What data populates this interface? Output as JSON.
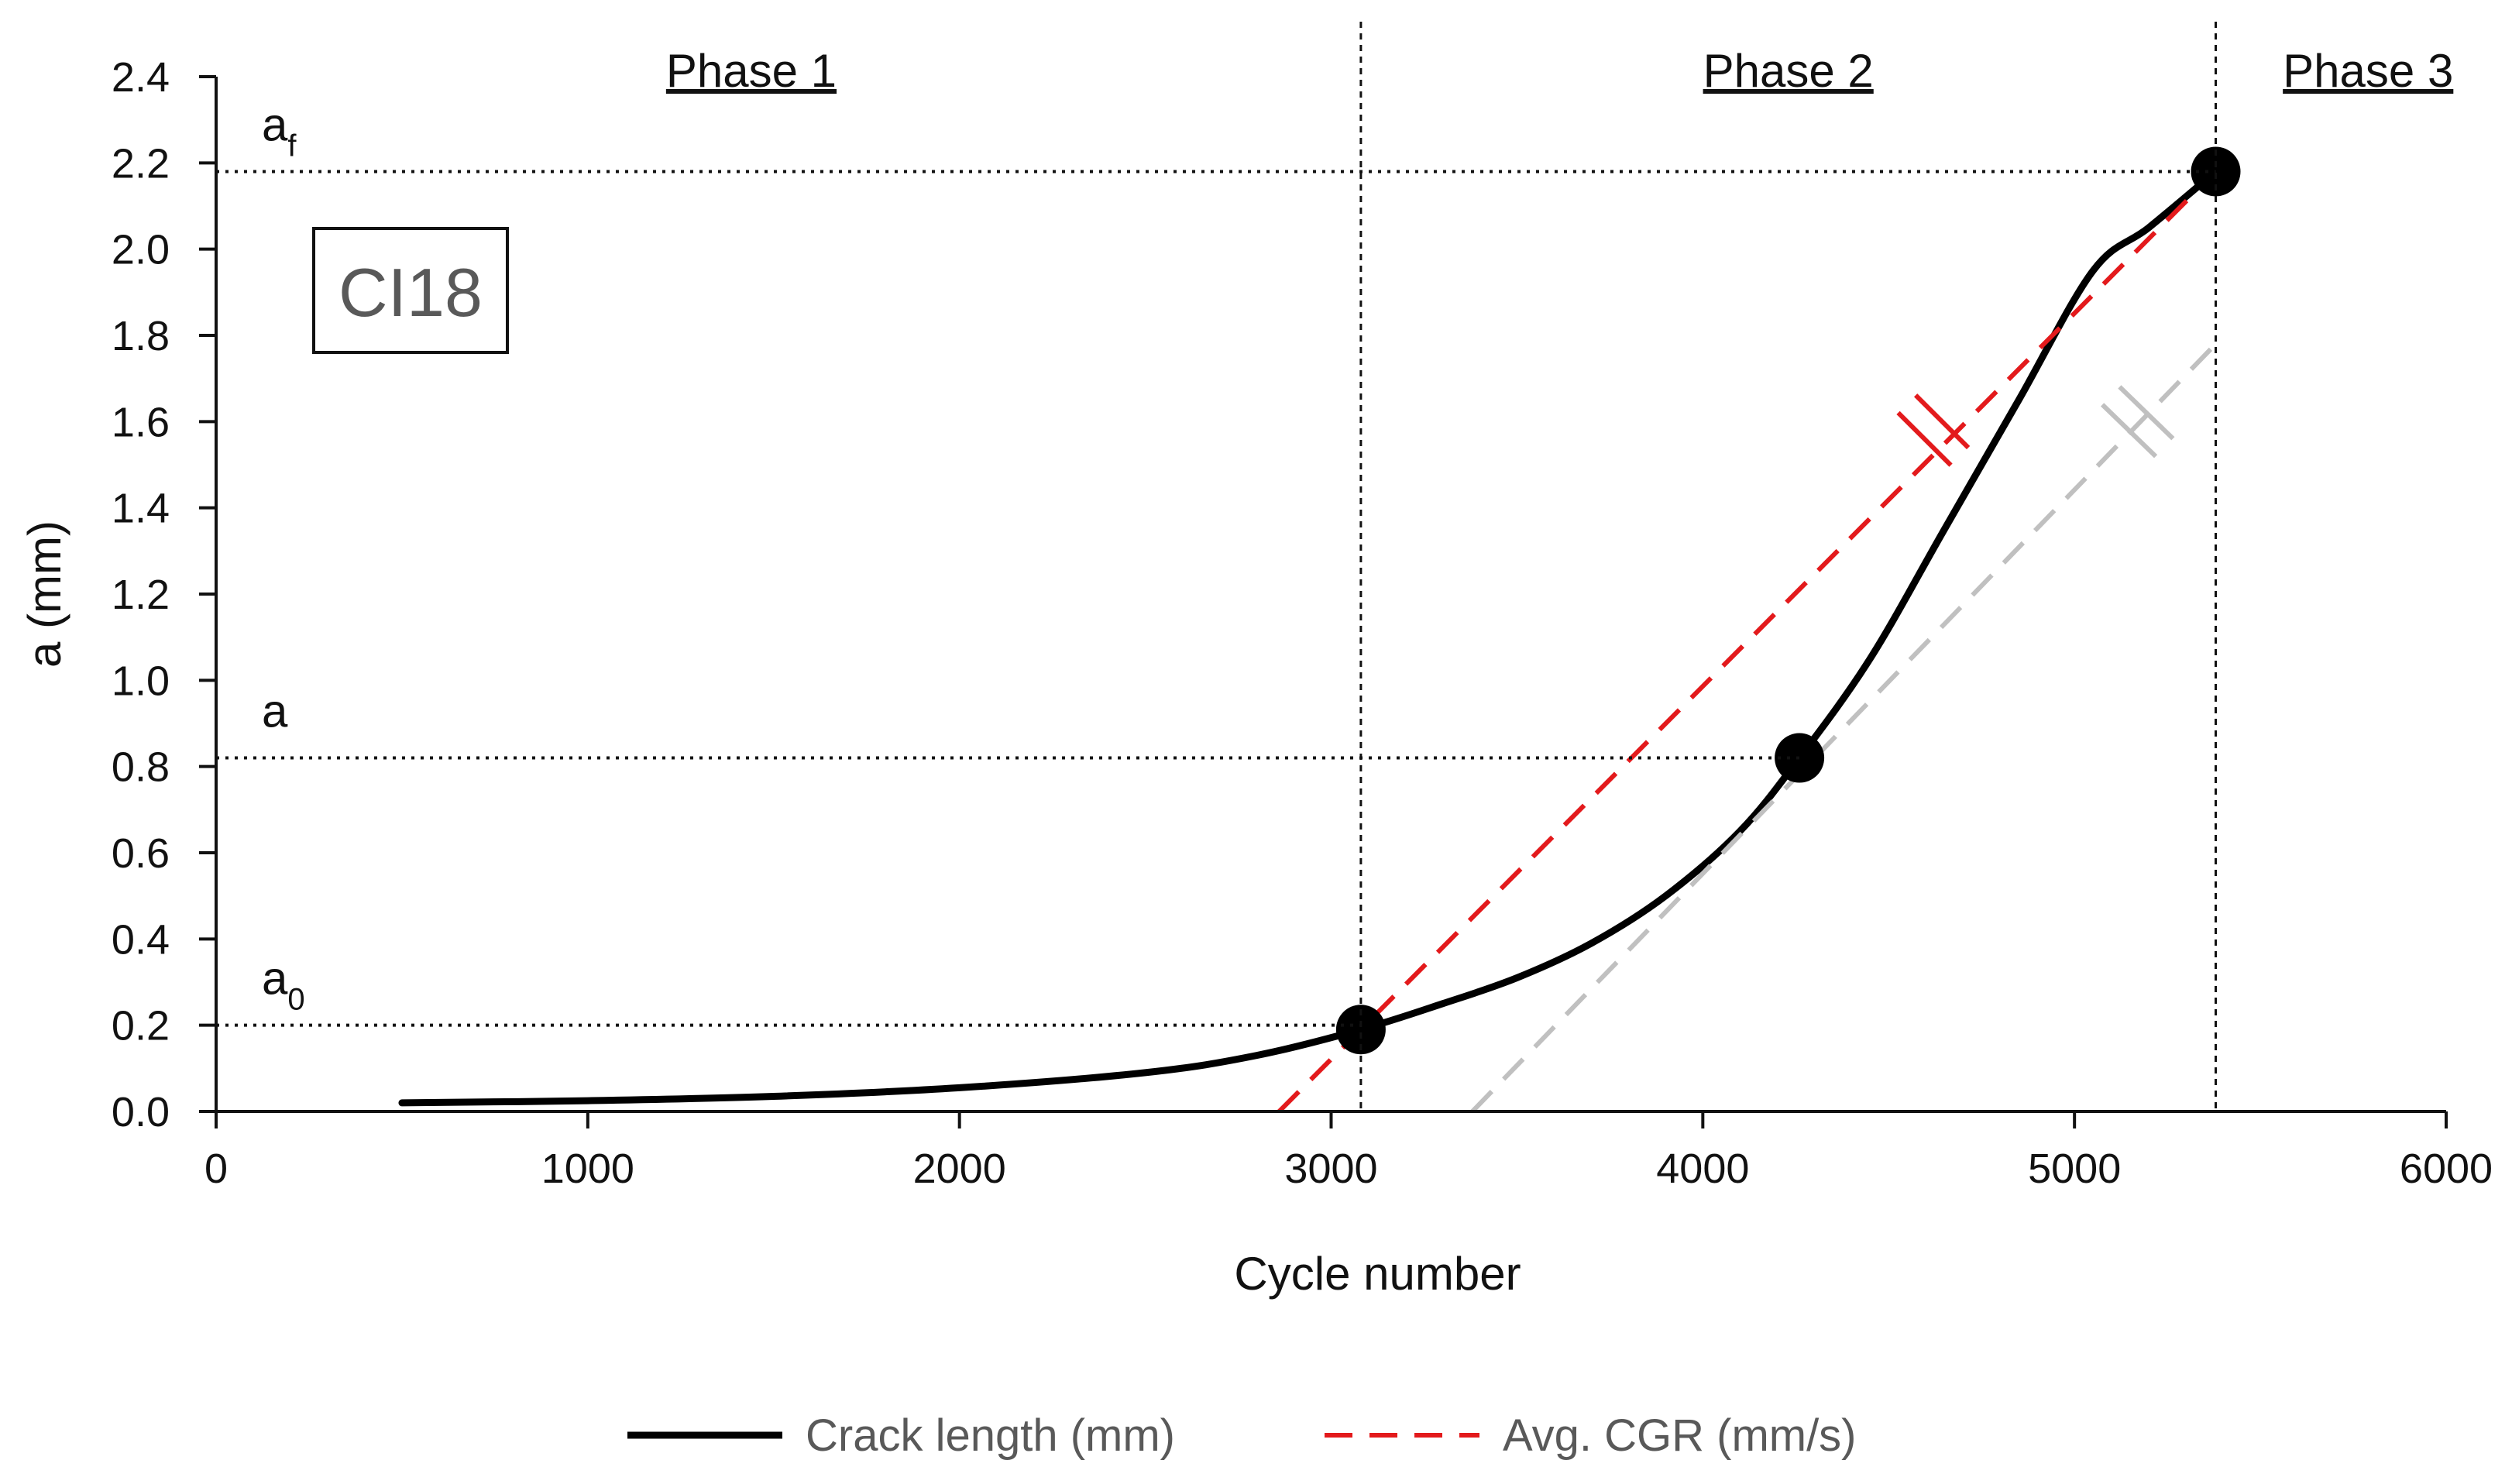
{
  "chart_data": {
    "type": "line",
    "title": "",
    "xlabel": "Cycle number",
    "ylabel": "a (mm)",
    "xlim": [
      0,
      6000
    ],
    "ylim": [
      0,
      2.4
    ],
    "x_ticks": [
      0,
      1000,
      2000,
      3000,
      4000,
      5000,
      6000
    ],
    "y_ticks": [
      0.0,
      0.2,
      0.4,
      0.6,
      0.8,
      1.0,
      1.2,
      1.4,
      1.6,
      1.8,
      2.0,
      2.2,
      2.4
    ],
    "x_tick_labels": [
      "0",
      "1000",
      "2000",
      "3000",
      "4000",
      "5000",
      "6000"
    ],
    "y_tick_labels": [
      "0.0",
      "0.2",
      "0.4",
      "0.6",
      "0.8",
      "1.0",
      "1.2",
      "1.4",
      "1.6",
      "1.8",
      "2.0",
      "2.2",
      "2.4"
    ],
    "grid": false,
    "series": [
      {
        "name": "Crack length (mm)",
        "style": "solid",
        "color": "#000000",
        "x": [
          500,
          1000,
          1500,
          2000,
          2500,
          2800,
          3080,
          3300,
          3500,
          3700,
          3900,
          4100,
          4260,
          4450,
          4650,
          4850,
          5050,
          5200,
          5380
        ],
        "y": [
          0.02,
          0.025,
          0.035,
          0.055,
          0.09,
          0.13,
          0.19,
          0.25,
          0.31,
          0.39,
          0.5,
          0.65,
          0.82,
          1.05,
          1.35,
          1.65,
          1.95,
          2.05,
          2.18
        ]
      },
      {
        "name": "Avg. CGR (mm/s)",
        "style": "dashed",
        "color": "#e31a1c",
        "x": [
          2860,
          5380
        ],
        "y": [
          0.0,
          2.18
        ]
      },
      {
        "name": "",
        "style": "dashed",
        "color": "#c0c0c0",
        "x": [
          3380,
          5380
        ],
        "y": [
          0.0,
          1.78
        ]
      }
    ],
    "markers": [
      {
        "x": 3080,
        "y": 0.19
      },
      {
        "x": 4260,
        "y": 0.82
      },
      {
        "x": 5380,
        "y": 2.18
      }
    ],
    "break_marks": [
      {
        "series": "red",
        "x": 4620,
        "y": 1.58
      },
      {
        "series": "grey",
        "x": 5170,
        "y": 1.6
      }
    ],
    "vertical_lines": [
      3080,
      5380
    ],
    "horizontal_levels": [
      {
        "label": "a",
        "sub": "f",
        "y": 2.18,
        "x_end": 5380
      },
      {
        "label": "a",
        "sub": "",
        "y": 0.82,
        "x_end": 4260
      },
      {
        "label": "a",
        "sub": "0",
        "y": 0.2,
        "x_end": 3080
      }
    ],
    "phases": [
      {
        "label": "Phase 1",
        "x": 1440
      },
      {
        "label": "Phase 2",
        "x": 4230
      },
      {
        "label": "Phase 3",
        "x": 5790
      }
    ],
    "sample_label": "CI18",
    "legend": [
      {
        "label": "Crack length (mm)",
        "style": "solid",
        "color": "#000000"
      },
      {
        "label": "Avg. CGR (mm/s)",
        "style": "dashed",
        "color": "#e31a1c"
      }
    ],
    "legend_position": "bottom-center"
  }
}
